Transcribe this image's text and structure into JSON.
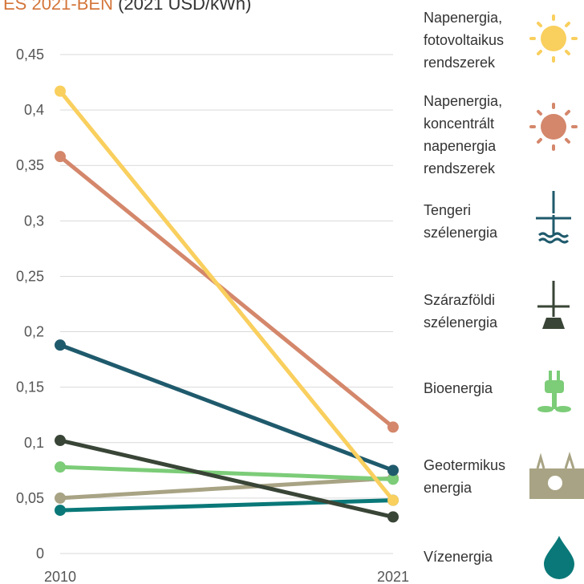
{
  "chart_data": {
    "type": "line",
    "title": "ES 2021-BEN",
    "unit": "(2021 USD/kWh)",
    "categories": [
      "2010",
      "2021"
    ],
    "ylim": [
      0,
      0.45
    ],
    "yticks": [
      0,
      {
        "value": 0.05,
        "label": "0,05"
      },
      {
        "value": 0.1,
        "label": "0,1"
      },
      {
        "value": 0.15,
        "label": "0,15"
      },
      {
        "value": 0.2,
        "label": "0,2"
      },
      {
        "value": 0.25,
        "label": "0,25"
      },
      {
        "value": 0.3,
        "label": "0,3"
      },
      {
        "value": 0.35,
        "label": "0,35"
      },
      {
        "value": 0.4,
        "label": "0,4"
      },
      {
        "value": 0.45,
        "label": "0,45"
      }
    ],
    "grid": true,
    "series": [
      {
        "name": "Napenergia,\nfotovoltaikus\nrendszerek",
        "color": "#f9cf5e",
        "values": [
          0.417,
          0.048
        ]
      },
      {
        "name": "Napenergia,\nkoncentrált\nnapenergia\nrendszerek",
        "color": "#d4876b",
        "values": [
          0.358,
          0.114
        ]
      },
      {
        "name": "Tengeri\nszélenergia",
        "color": "#1f5a6c",
        "values": [
          0.188,
          0.075
        ]
      },
      {
        "name": "Szárazföldi\nszélenergia",
        "color": "#394536",
        "values": [
          0.102,
          0.033
        ]
      },
      {
        "name": "Bioenergia",
        "color": "#7ccc78",
        "values": [
          0.078,
          0.067
        ]
      },
      {
        "name": "Geotermikus\nenergia",
        "color": "#a8a384",
        "values": [
          0.05,
          0.068
        ]
      },
      {
        "name": "Vízenergia",
        "color": "#0a7878",
        "values": [
          0.039,
          0.048
        ]
      }
    ]
  }
}
